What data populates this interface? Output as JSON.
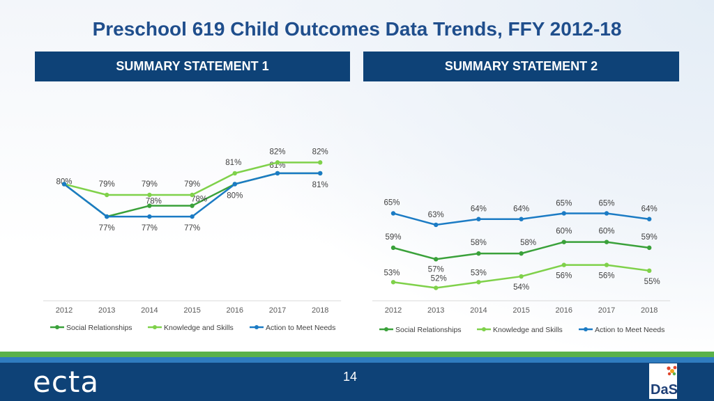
{
  "title": "Preschool 619 Child Outcomes Data Trends, FFY 2012-18",
  "page_number": "14",
  "footer": {
    "logo_left_text": "ecta",
    "logo_right_text": "DaSy"
  },
  "colors": {
    "title": "#1f4e8c",
    "header_bg": "#0e4277",
    "social": "#3aa13a",
    "knowledge": "#7fd14a",
    "action": "#1b7bc4"
  },
  "chart_data": [
    {
      "type": "line",
      "title": "SUMMARY STATEMENT 1",
      "categories": [
        "2012",
        "2013",
        "2014",
        "2015",
        "2016",
        "2017",
        "2018"
      ],
      "ylim": [
        70,
        88
      ],
      "legend_position": "bottom",
      "series": [
        {
          "name": "Social Relationships",
          "color_key": "social",
          "values": [
            80,
            77,
            78,
            78,
            80,
            81,
            81
          ],
          "labels": [
            "80%",
            "",
            "78%",
            "78%",
            "80%",
            "81%",
            "81%"
          ]
        },
        {
          "name": "Knowledge and Skills",
          "color_key": "knowledge",
          "values": [
            80,
            79,
            79,
            79,
            81,
            82,
            82
          ],
          "labels": [
            "",
            "79%",
            "79%",
            "79%",
            "81%",
            "82%",
            "82%"
          ]
        },
        {
          "name": "Action to Meet Needs",
          "color_key": "action",
          "values": [
            80,
            77,
            77,
            77,
            80,
            81,
            81
          ],
          "labels": [
            "",
            "77%",
            "77%",
            "77%",
            "",
            "",
            ""
          ]
        }
      ]
    },
    {
      "type": "line",
      "title": "SUMMARY STATEMENT 2",
      "categories": [
        "2012",
        "2013",
        "2014",
        "2015",
        "2016",
        "2017",
        "2018"
      ],
      "ylim": [
        50,
        67
      ],
      "legend_position": "bottom",
      "series": [
        {
          "name": "Social Relationships",
          "color_key": "social",
          "values": [
            59,
            57,
            58,
            58,
            60,
            60,
            59
          ],
          "labels": [
            "59%",
            "57%",
            "58%",
            "58%",
            "60%",
            "60%",
            "59%"
          ]
        },
        {
          "name": "Knowledge and Skills",
          "color_key": "knowledge",
          "values": [
            53,
            52,
            53,
            54,
            56,
            56,
            55
          ],
          "labels": [
            "53%",
            "52%",
            "53%",
            "54%",
            "56%",
            "56%",
            "55%"
          ]
        },
        {
          "name": "Action to Meet Needs",
          "color_key": "action",
          "values": [
            65,
            63,
            64,
            64,
            65,
            65,
            64
          ],
          "labels": [
            "65%",
            "63%",
            "64%",
            "64%",
            "65%",
            "65%",
            "64%"
          ]
        }
      ]
    }
  ]
}
